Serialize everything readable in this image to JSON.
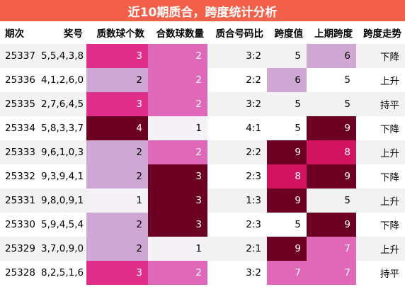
{
  "title": "近10期质合，跨度统计分析",
  "columns": [
    "期次",
    "奖号",
    "质数球个数",
    "合数球数量",
    "质合号码比",
    "跨度值",
    "上期跨度",
    "跨度走势"
  ],
  "rows": [
    {
      "issue": "25337",
      "numbers": "5,5,4,3,8",
      "prime": "3",
      "composite": "2",
      "ratio": "3:2",
      "span": "5",
      "prev_span": "6",
      "trend": "下降"
    },
    {
      "issue": "25336",
      "numbers": "4,1,2,6,0",
      "prime": "2",
      "composite": "2",
      "ratio": "2:2",
      "span": "6",
      "prev_span": "5",
      "trend": "上升"
    },
    {
      "issue": "25335",
      "numbers": "2,7,6,4,5",
      "prime": "3",
      "composite": "2",
      "ratio": "3:2",
      "span": "5",
      "prev_span": "5",
      "trend": "持平"
    },
    {
      "issue": "25334",
      "numbers": "5,8,3,3,7",
      "prime": "4",
      "composite": "1",
      "ratio": "4:1",
      "span": "5",
      "prev_span": "9",
      "trend": "下降"
    },
    {
      "issue": "25333",
      "numbers": "9,6,1,0,3",
      "prime": "2",
      "composite": "2",
      "ratio": "2:2",
      "span": "9",
      "prev_span": "8",
      "trend": "上升"
    },
    {
      "issue": "25332",
      "numbers": "9,3,9,4,1",
      "prime": "2",
      "composite": "3",
      "ratio": "2:3",
      "span": "8",
      "prev_span": "9",
      "trend": "下降"
    },
    {
      "issue": "25331",
      "numbers": "9,8,0,9,1",
      "prime": "1",
      "composite": "3",
      "ratio": "1:3",
      "span": "9",
      "prev_span": "5",
      "trend": "上升"
    },
    {
      "issue": "25330",
      "numbers": "5,9,4,5,4",
      "prime": "2",
      "composite": "3",
      "ratio": "2:3",
      "span": "5",
      "prev_span": "9",
      "trend": "下降"
    },
    {
      "issue": "25329",
      "numbers": "3,7,0,9,0",
      "prime": "2",
      "composite": "1",
      "ratio": "2:1",
      "span": "9",
      "prev_span": "7",
      "trend": "上升"
    },
    {
      "issue": "25328",
      "numbers": "8,2,5,1,6",
      "prime": "3",
      "composite": "2",
      "ratio": "3:2",
      "span": "7",
      "prev_span": "7",
      "trend": "持平"
    }
  ],
  "heat_colors": {
    "magenta": "#e02f8b",
    "pink": "#df69b8",
    "lilac": "#cfa7d3",
    "maroon": "#6b0023",
    "crimson": "#d11360",
    "pale": "#f4f1f7",
    "title_bg": "#f2604a"
  }
}
